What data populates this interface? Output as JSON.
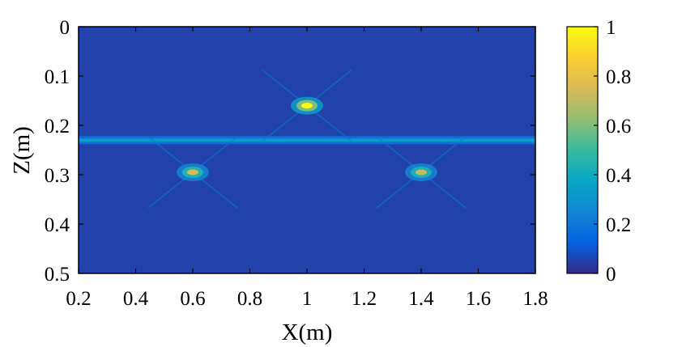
{
  "chart_data": {
    "type": "heatmap",
    "colormap": "parula",
    "xlabel": "X(m)",
    "ylabel": "Z(m)",
    "xlim": [
      0.2,
      1.8
    ],
    "ylim": [
      0,
      0.5
    ],
    "y_reversed": true,
    "x_ticks": [
      "0.2",
      "0.4",
      "0.6",
      "0.8",
      "1",
      "1.2",
      "1.4",
      "1.6",
      "1.8"
    ],
    "y_ticks": [
      "0",
      "0.1",
      "0.2",
      "0.3",
      "0.4",
      "0.5"
    ],
    "colorbar": {
      "range": [
        0,
        1
      ],
      "ticks": [
        "0",
        "0.2",
        "0.4",
        "0.6",
        "0.8",
        "1"
      ]
    },
    "background_value": 0.05,
    "hotspots": [
      {
        "x": 1.0,
        "z": 0.16,
        "value": 1.0
      },
      {
        "x": 0.6,
        "z": 0.295,
        "value": 0.75
      },
      {
        "x": 1.4,
        "z": 0.295,
        "value": 0.72
      }
    ],
    "horizontal_band": {
      "z": 0.23,
      "value": 0.35
    },
    "colors": {
      "low": "#352a87",
      "high": "#f9fb0e"
    }
  }
}
